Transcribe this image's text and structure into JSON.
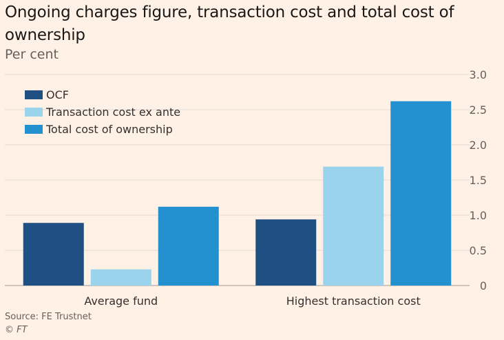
{
  "colors": {
    "background": "#fff1e5",
    "gridline": "#e3dcd5",
    "baseline": "#b3ada8",
    "tick_text": "#66605c"
  },
  "chart_data": {
    "type": "bar",
    "title": "Ongoing charges figure, transaction cost and total cost of ownership",
    "subtitle": "Per cent",
    "categories": [
      "Average fund",
      "Highest transaction cost"
    ],
    "series": [
      {
        "name": "OCF",
        "color": "#204f83",
        "values": [
          0.89,
          0.94
        ]
      },
      {
        "name": "Transaction cost ex ante",
        "color": "#99d3ec",
        "values": [
          0.23,
          1.69
        ]
      },
      {
        "name": "Total cost of ownership",
        "color": "#2390d0",
        "values": [
          1.12,
          2.62
        ]
      }
    ],
    "yticks": [
      "0",
      "0.5",
      "1.0",
      "1.5",
      "2.0",
      "2.5",
      "3.0"
    ],
    "ylim": [
      0,
      3
    ],
    "yaxis_side": "right",
    "legend_position": "top-left",
    "grid": true
  },
  "footer": {
    "source": "Source: FE Trustnet",
    "credit": "© FT"
  }
}
